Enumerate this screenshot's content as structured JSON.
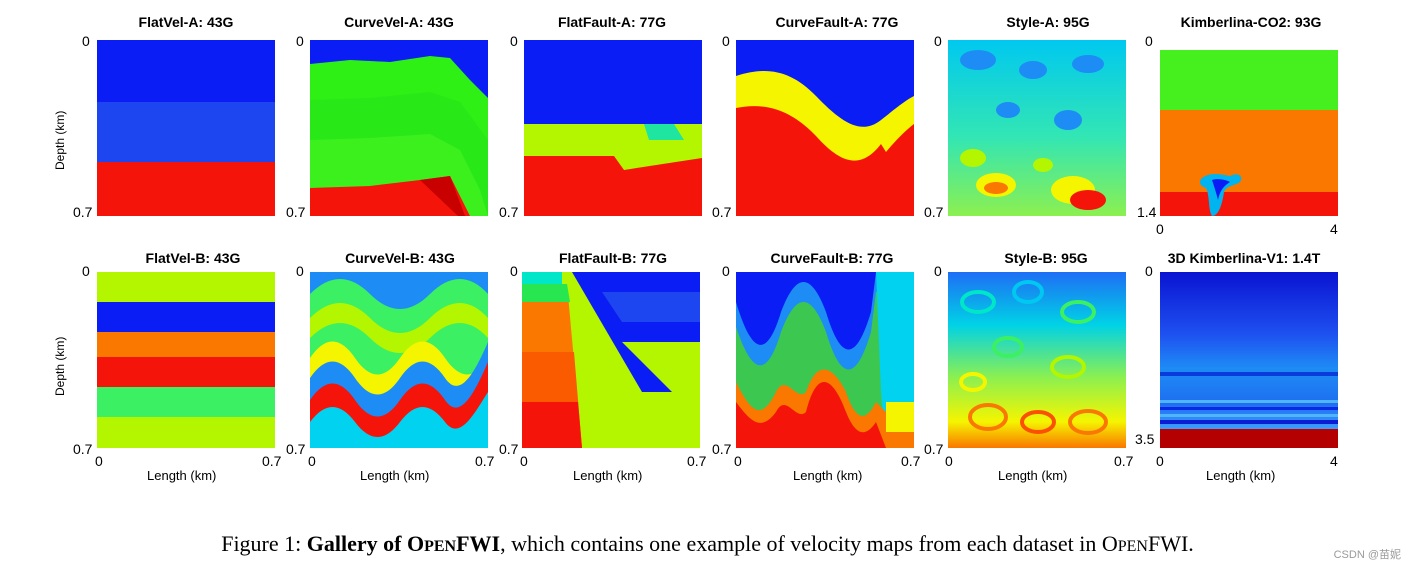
{
  "rows": [
    {
      "y_label": "Depth (km)",
      "panels": [
        {
          "title": "FlatVel-A: 43G",
          "y_top": "0",
          "y_bottom": "0.7",
          "x_left": "",
          "x_right": ""
        },
        {
          "title": "CurveVel-A: 43G",
          "y_top": "0",
          "y_bottom": "0.7",
          "x_left": "",
          "x_right": ""
        },
        {
          "title": "FlatFault-A: 77G",
          "y_top": "0",
          "y_bottom": "0.7",
          "x_left": "",
          "x_right": ""
        },
        {
          "title": "CurveFault-A: 77G",
          "y_top": "0",
          "y_bottom": "0.7",
          "x_left": "",
          "x_right": ""
        },
        {
          "title": "Style-A: 95G",
          "y_top": "0",
          "y_bottom": "0.7",
          "x_left": "",
          "x_right": ""
        },
        {
          "title": "Kimberlina-CO2: 93G",
          "y_top": "0",
          "y_bottom": "1.4",
          "x_left": "0",
          "x_right": "4"
        }
      ]
    },
    {
      "y_label": "Depth (km)",
      "x_label": "Length (km)",
      "panels": [
        {
          "title": "FlatVel-B: 43G",
          "y_top": "0",
          "y_bottom": "0.7",
          "x_left": "0",
          "x_right": "0.7"
        },
        {
          "title": "CurveVel-B: 43G",
          "y_top": "0",
          "y_bottom": "0.7",
          "x_left": "0",
          "x_right": "0.7"
        },
        {
          "title": "FlatFault-B: 77G",
          "y_top": "0",
          "y_bottom": "0.7",
          "x_left": "0",
          "x_right": "0.7"
        },
        {
          "title": "CurveFault-B: 77G",
          "y_top": "0",
          "y_bottom": "0.7",
          "x_left": "0",
          "x_right": "0.7"
        },
        {
          "title": "Style-B: 95G",
          "y_top": "0",
          "y_bottom": "0.7",
          "x_left": "0",
          "x_right": "0.7"
        },
        {
          "title": "3D Kimberlina-V1: 1.4T",
          "y_top": "0",
          "y_bottom": "3.5",
          "x_left": "0",
          "x_right": "4"
        }
      ]
    }
  ],
  "caption": {
    "prefix": "Figure 1: ",
    "bold_gallery": "Gallery of ",
    "bold_O": "O",
    "bold_pen": "PEN",
    "bold_fwi": "FWI",
    "middle": ", which contains one example of velocity maps from each dataset in ",
    "end_O": "O",
    "end_pen": "PEN",
    "end_fwi": "FWI."
  },
  "watermark": "CSDN @苗妮",
  "colors": {
    "blue": "#0a1df5",
    "blue2": "#1e46f0",
    "red": "#f5140a",
    "green": "#3cf01e",
    "yellow": "#f5f500",
    "lime": "#b4f500",
    "orange": "#fa7800",
    "cyan": "#00e6f0",
    "sky": "#1e8cf5",
    "darkred": "#b40000"
  }
}
